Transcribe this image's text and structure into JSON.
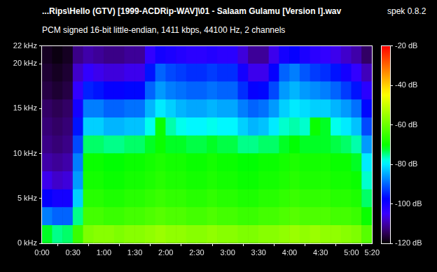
{
  "chart_data": {
    "type": "heatmap",
    "title": "...Rips\\Hello (GTV) [1999-ACDRip-WAV]\\01 - Salaam Gulamu [Version I].wav",
    "subtitle": "PCM signed 16-bit little-endian, 1411 kbps, 44100 Hz, 2 channels",
    "annotations": [
      "spek 0.8.2"
    ],
    "xlim": [
      0,
      320
    ],
    "xticks": [
      {
        "value": 0,
        "label": "0:00"
      },
      {
        "value": 30,
        "label": "0:30"
      },
      {
        "value": 60,
        "label": "1:00"
      },
      {
        "value": 90,
        "label": "1:30"
      },
      {
        "value": 120,
        "label": "2:00"
      },
      {
        "value": 150,
        "label": "2:30"
      },
      {
        "value": 180,
        "label": "3:00"
      },
      {
        "value": 210,
        "label": "3:30"
      },
      {
        "value": 240,
        "label": "4:00"
      },
      {
        "value": 270,
        "label": "4:30"
      },
      {
        "value": 300,
        "label": "5:00"
      },
      {
        "value": 320,
        "label": "5:20"
      }
    ],
    "ylim": [
      0,
      22
    ],
    "yticks": [
      {
        "value": 0,
        "label": "0 kHz"
      },
      {
        "value": 5,
        "label": "5 kHz"
      },
      {
        "value": 10,
        "label": "10 kHz"
      },
      {
        "value": 15,
        "label": "15 kHz"
      },
      {
        "value": 20,
        "label": "20 kHz"
      },
      {
        "value": 22,
        "label": "22 kHz"
      }
    ],
    "grid": false,
    "x_bins": [
      0,
      10,
      20,
      30,
      40,
      50,
      60,
      70,
      80,
      90,
      100,
      110,
      120,
      130,
      140,
      150,
      160,
      170,
      180,
      190,
      200,
      210,
      220,
      230,
      240,
      250,
      260,
      270,
      280,
      290,
      300,
      310,
      320
    ],
    "y_bins": [
      0,
      2,
      4,
      6,
      8,
      10,
      12,
      14,
      16,
      18,
      20,
      22
    ],
    "cells": [
      [
        -72,
        -75,
        -74,
        -65,
        -58,
        -57,
        -57,
        -58,
        -57,
        -57,
        -56,
        -55,
        -56,
        -56,
        -57,
        -57,
        -56,
        -57,
        -57,
        -58,
        -58,
        -57,
        -57,
        -56,
        -55,
        -56,
        -55,
        -56,
        -56,
        -57,
        -58,
        -62
      ],
      [
        -88,
        -90,
        -90,
        -75,
        -64,
        -64,
        -65,
        -65,
        -64,
        -64,
        -63,
        -62,
        -63,
        -63,
        -64,
        -64,
        -63,
        -64,
        -64,
        -65,
        -65,
        -64,
        -64,
        -63,
        -62,
        -63,
        -63,
        -63,
        -64,
        -64,
        -65,
        -70
      ],
      [
        -98,
        -100,
        -100,
        -82,
        -67,
        -67,
        -68,
        -68,
        -67,
        -67,
        -66,
        -65,
        -66,
        -66,
        -67,
        -67,
        -66,
        -67,
        -67,
        -68,
        -68,
        -67,
        -67,
        -66,
        -65,
        -66,
        -66,
        -66,
        -67,
        -67,
        -68,
        -74
      ],
      [
        -106,
        -108,
        -107,
        -86,
        -69,
        -69,
        -70,
        -70,
        -69,
        -69,
        -68,
        -67,
        -68,
        -68,
        -69,
        -69,
        -68,
        -69,
        -69,
        -70,
        -70,
        -69,
        -69,
        -68,
        -67,
        -68,
        -68,
        -68,
        -69,
        -69,
        -70,
        -77
      ],
      [
        -110,
        -111,
        -110,
        -88,
        -70,
        -70,
        -71,
        -71,
        -70,
        -70,
        -69,
        -68,
        -69,
        -69,
        -70,
        -70,
        -69,
        -70,
        -70,
        -71,
        -71,
        -70,
        -70,
        -69,
        -68,
        -69,
        -69,
        -69,
        -70,
        -70,
        -72,
        -80
      ],
      [
        -112,
        -113,
        -112,
        -92,
        -74,
        -74,
        -75,
        -75,
        -74,
        -74,
        -72,
        -70,
        -72,
        -72,
        -73,
        -73,
        -72,
        -73,
        -73,
        -75,
        -75,
        -74,
        -74,
        -72,
        -71,
        -72,
        -72,
        -72,
        -73,
        -74,
        -76,
        -86
      ],
      [
        -113,
        -114,
        -113,
        -96,
        -82,
        -82,
        -84,
        -84,
        -83,
        -83,
        -78,
        -70,
        -76,
        -78,
        -79,
        -79,
        -78,
        -79,
        -79,
        -82,
        -84,
        -83,
        -80,
        -77,
        -76,
        -77,
        -70,
        -72,
        -78,
        -80,
        -83,
        -92
      ],
      [
        -114,
        -115,
        -114,
        -100,
        -88,
        -88,
        -90,
        -90,
        -89,
        -89,
        -84,
        -80,
        -82,
        -84,
        -85,
        -85,
        -84,
        -85,
        -85,
        -88,
        -90,
        -89,
        -86,
        -82,
        -80,
        -81,
        -82,
        -82,
        -84,
        -86,
        -89,
        -97
      ],
      [
        -116,
        -117,
        -116,
        -104,
        -95,
        -96,
        -98,
        -98,
        -97,
        -97,
        -90,
        -86,
        -88,
        -89,
        -90,
        -90,
        -89,
        -90,
        -90,
        -94,
        -98,
        -97,
        -92,
        -86,
        -84,
        -86,
        -87,
        -88,
        -90,
        -93,
        -96,
        -103
      ],
      [
        -117,
        -118,
        -117,
        -108,
        -104,
        -106,
        -107,
        -107,
        -106,
        -106,
        -96,
        -90,
        -92,
        -93,
        -94,
        -94,
        -93,
        -94,
        -94,
        -100,
        -106,
        -106,
        -98,
        -90,
        -88,
        -91,
        -93,
        -94,
        -96,
        -100,
        -104,
        -109
      ],
      [
        -118,
        -119,
        -118,
        -112,
        -110,
        -111,
        -112,
        -112,
        -111,
        -111,
        -104,
        -100,
        -101,
        -102,
        -103,
        -103,
        -102,
        -103,
        -103,
        -107,
        -111,
        -111,
        -106,
        -100,
        -98,
        -101,
        -103,
        -104,
        -106,
        -108,
        -110,
        -114
      ]
    ],
    "colorbar": {
      "range": [
        -120,
        -20
      ],
      "ticks": [
        {
          "value": -20,
          "label": "-20 dB"
        },
        {
          "value": -40,
          "label": "-40 dB"
        },
        {
          "value": -60,
          "label": "-60 dB"
        },
        {
          "value": -80,
          "label": "-80 dB"
        },
        {
          "value": -100,
          "label": "-100 dB"
        },
        {
          "value": -120,
          "label": "-120 dB"
        }
      ]
    }
  }
}
